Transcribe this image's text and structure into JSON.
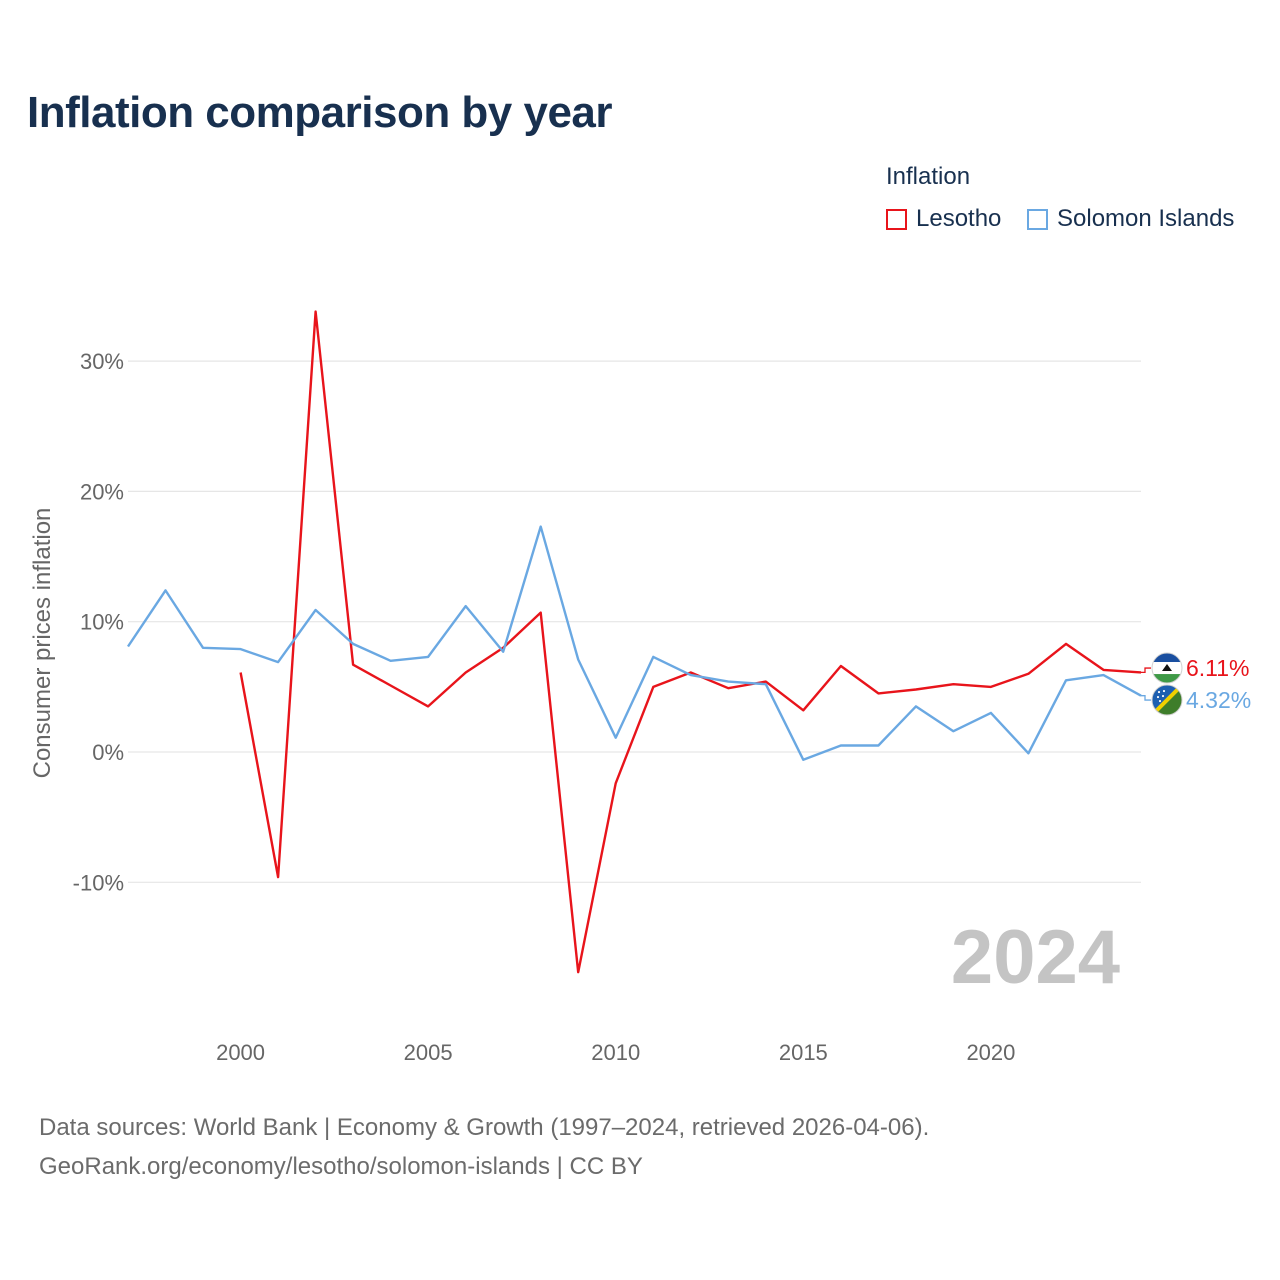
{
  "title": "Inflation comparison by year",
  "legend": {
    "title": "Inflation",
    "items": [
      {
        "label": "Lesotho",
        "color": "#e8141b"
      },
      {
        "label": "Solomon Islands",
        "color": "#6aa8e2"
      }
    ]
  },
  "footer": {
    "line1": "Data sources: World Bank | Economy & Growth (1997–2024, retrieved 2026-04-06).",
    "line2": "GeoRank.org/economy/lesotho/solomon-islands | CC BY"
  },
  "chart_data": {
    "type": "line",
    "title": "Inflation comparison by year",
    "ylabel": "Consumer prices inflation",
    "xlabel": "",
    "xlim": [
      1997,
      2024
    ],
    "ylim": [
      -20,
      35
    ],
    "y_ticks": [
      30,
      20,
      10,
      0,
      -10
    ],
    "y_tick_labels": [
      "30%",
      "20%",
      "10%",
      "0%",
      "-10%"
    ],
    "x_ticks": [
      2000,
      2005,
      2010,
      2015,
      2020
    ],
    "x_tick_labels": [
      "2000",
      "2005",
      "2010",
      "2015",
      "2020"
    ],
    "year_label": "2024",
    "series": [
      {
        "name": "Lesotho",
        "color": "#e8141b",
        "end_label": "6.11%",
        "x": [
          2000,
          2001,
          2002,
          2003,
          2004,
          2005,
          2006,
          2007,
          2008,
          2009,
          2010,
          2011,
          2012,
          2013,
          2014,
          2015,
          2016,
          2017,
          2018,
          2019,
          2020,
          2021,
          2022,
          2023,
          2024
        ],
        "values": [
          6.1,
          -9.6,
          33.8,
          6.7,
          5.1,
          3.5,
          6.1,
          8.0,
          10.7,
          -16.9,
          -2.4,
          5.0,
          6.1,
          4.9,
          5.4,
          3.2,
          6.6,
          4.5,
          4.8,
          5.2,
          5.0,
          6.0,
          8.3,
          6.3,
          6.11
        ]
      },
      {
        "name": "Solomon Islands",
        "color": "#6aa8e2",
        "end_label": "4.32%",
        "x": [
          1997,
          1998,
          1999,
          2000,
          2001,
          2002,
          2003,
          2004,
          2005,
          2006,
          2007,
          2008,
          2009,
          2010,
          2011,
          2012,
          2013,
          2014,
          2015,
          2016,
          2017,
          2018,
          2019,
          2020,
          2021,
          2022,
          2023,
          2024
        ],
        "values": [
          8.1,
          12.4,
          8.0,
          7.9,
          6.9,
          10.9,
          8.3,
          7.0,
          7.3,
          11.2,
          7.7,
          17.3,
          7.1,
          1.1,
          7.3,
          5.9,
          5.4,
          5.2,
          -0.6,
          0.5,
          0.5,
          3.5,
          1.6,
          3.0,
          -0.1,
          5.5,
          5.9,
          4.32
        ]
      }
    ]
  }
}
